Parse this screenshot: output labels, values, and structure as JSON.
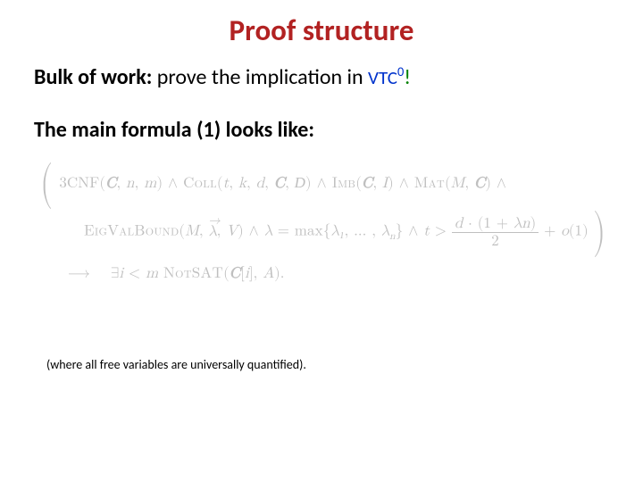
{
  "title": {
    "text": "Proof structure",
    "color": "#b22222",
    "fontsize": 33
  },
  "line1": {
    "bold_prefix": "Bulk of work:",
    "mid": " prove the implication in ",
    "vtc": "VTC",
    "sup": "0",
    "bang": "!",
    "fontsize": 24,
    "color_black": "#000000",
    "color_blue": "#0033cc",
    "color_green": "#008000",
    "vtc_fontsize": 21
  },
  "line2": {
    "text": "The main formula (1) looks like:",
    "color": "#000000",
    "fontsize": 24
  },
  "formula": {
    "color": "#bfbfbf",
    "fontsize": 17,
    "row1": {
      "p1": "3CNF(",
      "c1": "C",
      "p2": ", ",
      "n": "n",
      "p3": ", ",
      "m": "m",
      "p4": ") ∧ ",
      "coll": "Coll",
      "p5": "(",
      "t": "t",
      "p6": ", ",
      "k": "k",
      "p7": ", ",
      "d": "d",
      "p8": ", ",
      "c2": "C",
      "p9": ", ",
      "dscr": "D",
      "p10": ") ∧ ",
      "imb": "Imb",
      "p11": "(",
      "c3": "C",
      "p12": ", ",
      "I": "I",
      "p13": ") ∧ ",
      "mat": "Mat",
      "p14": "(",
      "M": "M",
      "p15": ", ",
      "c4": "C",
      "p16": ") ∧"
    },
    "row2": {
      "evb": "EigValBound",
      "p1": "(",
      "M": "M",
      "p2": ", ",
      "lam": "λ",
      "p3": ", ",
      "V": "V",
      "p4": ") ∧ ",
      "lam2": "λ",
      "eq": " = max{",
      "l1": "λ₁",
      "dots": ", … , ",
      "ln": "λ",
      "nsub": "n",
      "p5": "} ∧ ",
      "t": "t",
      "gt": " > ",
      "num_d": "d",
      "num_mid": " · (1 + ",
      "num_l": "λ",
      "num_n": "n",
      "num_end": ")",
      "den": "2",
      "plus_o": " + ",
      "o": "o",
      "o1": "(1)"
    },
    "row3": {
      "arrow": "⟶  ∃",
      "i": "i",
      "lt": " < ",
      "m": "m",
      "sp": " ",
      "notsat": "NotSAT",
      "p1": "(",
      "C": "C",
      "br1": "[",
      "i2": "i",
      "br2": "], ",
      "A": "A",
      "p2": ")."
    }
  },
  "footnote": {
    "text": "(where all free variables are universally quantified).",
    "color": "#000000",
    "fontsize": 14
  }
}
